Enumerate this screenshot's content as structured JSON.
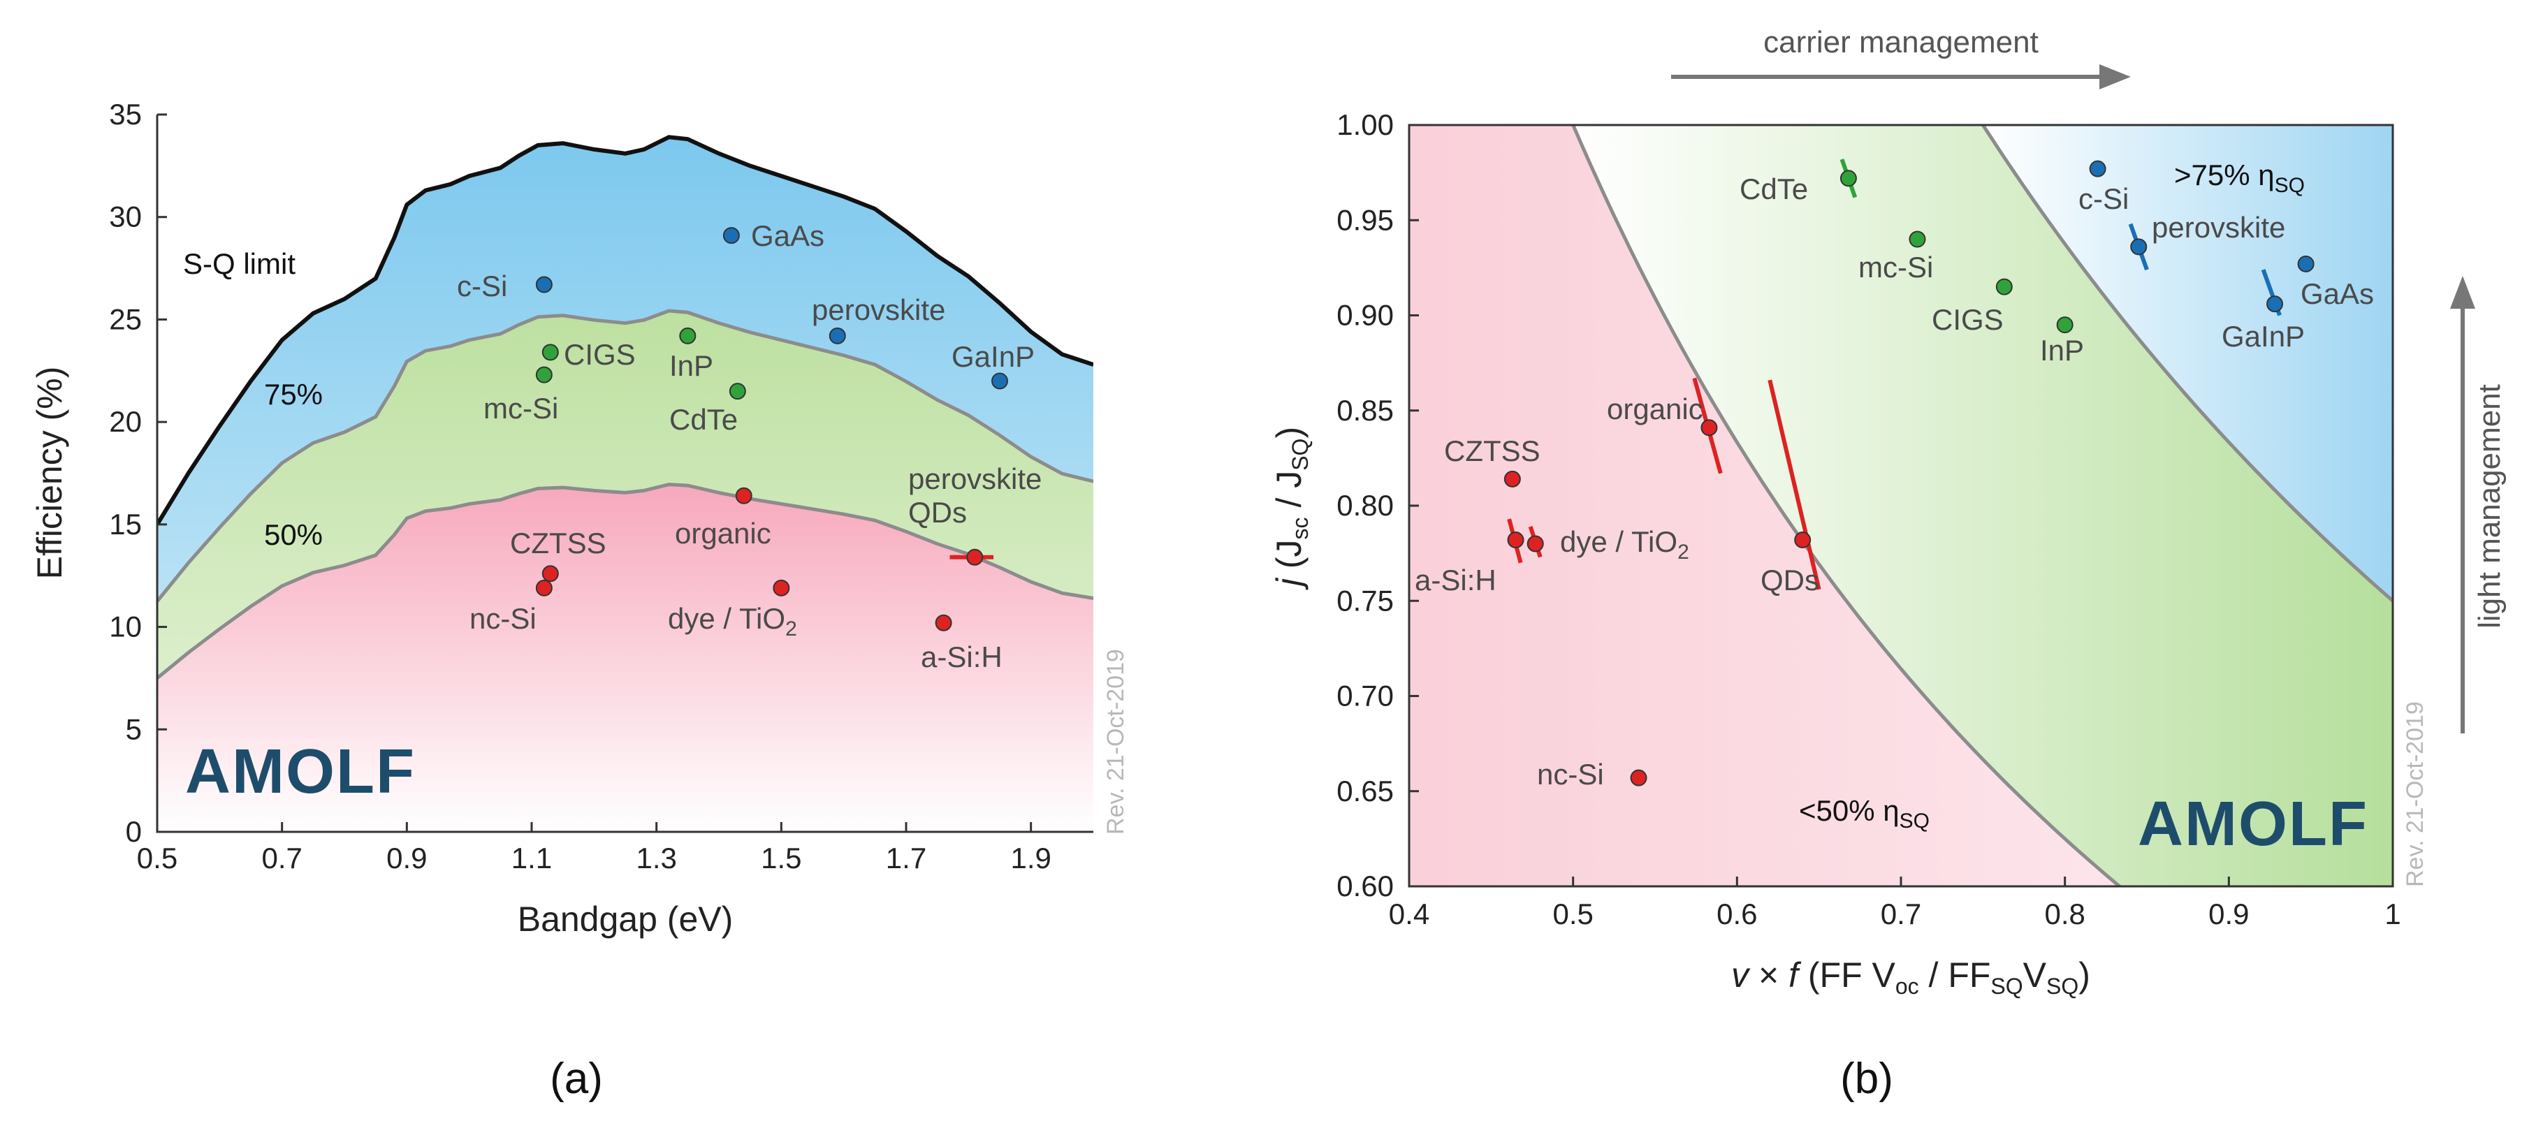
{
  "chart_data": [
    {
      "type": "area",
      "panel_label": "(a)",
      "xlabel": "Bandgap (eV)",
      "ylabel": "Efficiency (%)",
      "xlim": [
        0.5,
        2.0
      ],
      "ylim": [
        0,
        35
      ],
      "xticks": [
        "0.5",
        "0.7",
        "0.9",
        "1.1",
        "1.3",
        "1.5",
        "1.7",
        "1.9"
      ],
      "yticks": [
        "0",
        "5",
        "10",
        "15",
        "20",
        "25",
        "30",
        "35"
      ],
      "sq_limit_label": "S-Q limit",
      "band_labels": [
        {
          "text": "75%",
          "x": 0.78,
          "y": 20.5
        },
        {
          "text": "50%",
          "x": 0.78,
          "y": 13.9
        }
      ],
      "sq_curve": [
        [
          0.5,
          15.0
        ],
        [
          0.55,
          17.5
        ],
        [
          0.6,
          19.8
        ],
        [
          0.65,
          22.0
        ],
        [
          0.7,
          24.0
        ],
        [
          0.75,
          25.3
        ],
        [
          0.8,
          26.0
        ],
        [
          0.85,
          27.0
        ],
        [
          0.88,
          29.0
        ],
        [
          0.9,
          30.6
        ],
        [
          0.93,
          31.3
        ],
        [
          0.97,
          31.6
        ],
        [
          1.0,
          32.0
        ],
        [
          1.05,
          32.4
        ],
        [
          1.08,
          33.0
        ],
        [
          1.11,
          33.5
        ],
        [
          1.15,
          33.6
        ],
        [
          1.2,
          33.3
        ],
        [
          1.25,
          33.1
        ],
        [
          1.28,
          33.3
        ],
        [
          1.32,
          33.9
        ],
        [
          1.35,
          33.8
        ],
        [
          1.4,
          33.1
        ],
        [
          1.45,
          32.5
        ],
        [
          1.5,
          32.0
        ],
        [
          1.55,
          31.5
        ],
        [
          1.6,
          31.0
        ],
        [
          1.65,
          30.4
        ],
        [
          1.7,
          29.3
        ],
        [
          1.75,
          28.1
        ],
        [
          1.8,
          27.1
        ],
        [
          1.85,
          25.8
        ],
        [
          1.9,
          24.4
        ],
        [
          1.95,
          23.3
        ],
        [
          2.0,
          22.8
        ]
      ],
      "levels": [
        0.75,
        0.5
      ],
      "points": [
        {
          "label": "c-Si",
          "x": 1.12,
          "y": 26.7,
          "color": "#1a6fb4"
        },
        {
          "label": "GaAs",
          "x": 1.42,
          "y": 29.1,
          "color": "#1a6fb4"
        },
        {
          "label": "perovskite",
          "x": 1.59,
          "y": 24.2,
          "color": "#1a6fb4"
        },
        {
          "label": "GaInP",
          "x": 1.85,
          "y": 22.0,
          "color": "#1a6fb4"
        },
        {
          "label": "CIGS",
          "x": 1.13,
          "y": 23.4,
          "color": "#2fa33a"
        },
        {
          "label": "mc-Si",
          "x": 1.12,
          "y": 22.3,
          "color": "#2fa33a"
        },
        {
          "label": "InP",
          "x": 1.35,
          "y": 24.2,
          "color": "#2fa33a"
        },
        {
          "label": "CdTe",
          "x": 1.43,
          "y": 21.5,
          "color": "#2fa33a"
        },
        {
          "label": "organic",
          "x": 1.44,
          "y": 16.4,
          "color": "#dd2222"
        },
        {
          "label": "CZTSS",
          "x": 1.13,
          "y": 12.6,
          "color": "#dd2222"
        },
        {
          "label": "nc-Si",
          "x": 1.12,
          "y": 11.9,
          "color": "#dd2222"
        },
        {
          "label": "dye / TiO",
          "sub": "2",
          "x": 1.5,
          "y": 11.9,
          "color": "#dd2222"
        },
        {
          "label": "perovskite QDs",
          "line1": "perovskite",
          "line2": "QDs",
          "x": 1.81,
          "y": 13.4,
          "color": "#dd2222"
        },
        {
          "label": "a-Si:H",
          "x": 1.76,
          "y": 10.2,
          "color": "#dd2222"
        }
      ],
      "error_bars": [
        {
          "x1": 1.77,
          "y1": 13.4,
          "x2": 1.84,
          "y2": 13.4,
          "color": "#dd2222"
        }
      ],
      "logo_text": "AMOLF",
      "revision": "Rev. 21-Oct-2019"
    },
    {
      "type": "scatter",
      "panel_label": "(b)",
      "xlabel": "v × f  (FF V_oc / FF_SQ V_SQ)",
      "ylabel": "j  (J_sc / J_SQ)",
      "xlim": [
        0.4,
        1.0
      ],
      "ylim": [
        0.6,
        1.0
      ],
      "xticks": [
        "0.4",
        "0.5",
        "0.6",
        "0.7",
        "0.8",
        "0.9",
        "1"
      ],
      "yticks": [
        "0.60",
        "0.65",
        "0.70",
        "0.75",
        "0.80",
        "0.85",
        "0.90",
        "0.95",
        "1.00"
      ],
      "iso_curves": [
        0.5,
        0.75
      ],
      "region_labels": [
        {
          "text": ">75% η",
          "sub": "SQ",
          "x": 0.865,
          "y": 0.965
        },
        {
          "text": "<50% η",
          "sub": "SQ",
          "x": 0.635,
          "y": 0.638
        }
      ],
      "arrows": [
        {
          "text": "carrier management",
          "direction": "right"
        },
        {
          "text": "light management",
          "direction": "up"
        }
      ],
      "points": [
        {
          "label": "c-Si",
          "x": 0.82,
          "y": 0.977,
          "color": "#1a6fb4"
        },
        {
          "label": "perovskite",
          "x": 0.845,
          "y": 0.936,
          "color": "#1a6fb4"
        },
        {
          "label": "GaAs",
          "x": 0.947,
          "y": 0.927,
          "color": "#1a6fb4"
        },
        {
          "label": "GaInP",
          "x": 0.928,
          "y": 0.906,
          "color": "#1a6fb4"
        },
        {
          "label": "CdTe",
          "x": 0.668,
          "y": 0.972,
          "color": "#2fa33a"
        },
        {
          "label": "mc-Si",
          "x": 0.71,
          "y": 0.94,
          "color": "#2fa33a"
        },
        {
          "label": "CIGS",
          "x": 0.763,
          "y": 0.915,
          "color": "#2fa33a"
        },
        {
          "label": "InP",
          "x": 0.8,
          "y": 0.895,
          "color": "#2fa33a"
        },
        {
          "label": "organic",
          "x": 0.583,
          "y": 0.841,
          "color": "#dd2222"
        },
        {
          "label": "CZTSS",
          "x": 0.463,
          "y": 0.814,
          "color": "#dd2222"
        },
        {
          "label": "a-Si:H",
          "x": 0.465,
          "y": 0.782,
          "color": "#dd2222"
        },
        {
          "label": "dye / TiO",
          "sub": "2",
          "x": 0.477,
          "y": 0.78,
          "color": "#dd2222"
        },
        {
          "label": "QDs",
          "x": 0.64,
          "y": 0.782,
          "color": "#dd2222"
        },
        {
          "label": "nc-Si",
          "x": 0.54,
          "y": 0.657,
          "color": "#dd2222"
        }
      ],
      "error_bars": [
        {
          "x1": 0.664,
          "y1": 0.982,
          "x2": 0.672,
          "y2": 0.962,
          "color": "#2fa33a"
        },
        {
          "x1": 0.84,
          "y1": 0.948,
          "x2": 0.85,
          "y2": 0.924,
          "color": "#1a6fb4"
        },
        {
          "x1": 0.921,
          "y1": 0.924,
          "x2": 0.931,
          "y2": 0.9,
          "color": "#1a6fb4"
        },
        {
          "x1": 0.574,
          "y1": 0.867,
          "x2": 0.59,
          "y2": 0.817,
          "color": "#dd2222"
        },
        {
          "x1": 0.62,
          "y1": 0.866,
          "x2": 0.65,
          "y2": 0.756,
          "color": "#dd2222"
        },
        {
          "x1": 0.461,
          "y1": 0.793,
          "x2": 0.468,
          "y2": 0.77,
          "color": "#dd2222"
        },
        {
          "x1": 0.474,
          "y1": 0.789,
          "x2": 0.48,
          "y2": 0.773,
          "color": "#dd2222"
        }
      ],
      "logo_text": "AMOLF",
      "revision": "Rev. 21-Oct-2019"
    }
  ]
}
